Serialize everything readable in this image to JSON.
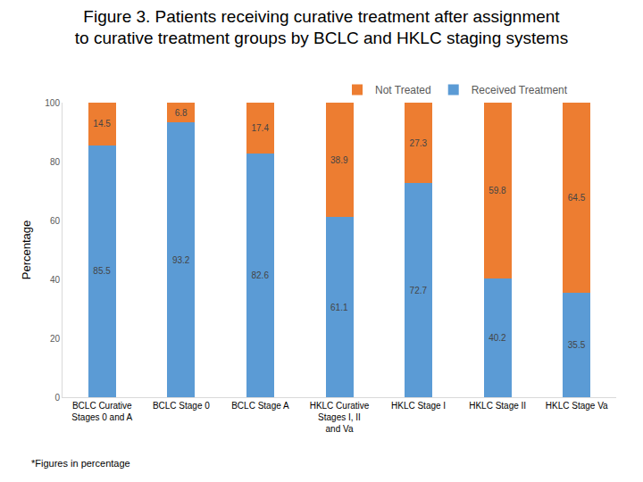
{
  "chart_data": {
    "type": "bar",
    "title": "Figure 3. Patients receiving curative treatment after assignment\nto curative treatment groups by BCLC and HKLC staging systems",
    "y_label": "Percentage",
    "categories": [
      "BCLC Curative Stages 0 and A",
      "BCLC Stage 0",
      "BCLC Stage A",
      "HKLC Curative Stages I, II and Va",
      "HKLC Stage I",
      "HKLC Stage II",
      "HKLC Stage Va"
    ],
    "series": [
      {
        "name": "Received Treatment",
        "color": "#5b9bd5",
        "values": [
          85.5,
          93.2,
          82.6,
          61.1,
          72.7,
          40.2,
          35.5
        ]
      },
      {
        "name": "Not Treated",
        "color": "#ed7d31",
        "values": [
          14.5,
          6.8,
          17.4,
          38.9,
          27.3,
          59.8,
          64.5
        ]
      }
    ],
    "stacked": true,
    "data_labels": true,
    "ylim": [
      0,
      100
    ],
    "yticks": [
      0,
      20,
      40,
      60,
      80,
      100
    ],
    "grid": false,
    "legend": "top",
    "annotations": [
      "*Figures in percentage"
    ]
  }
}
